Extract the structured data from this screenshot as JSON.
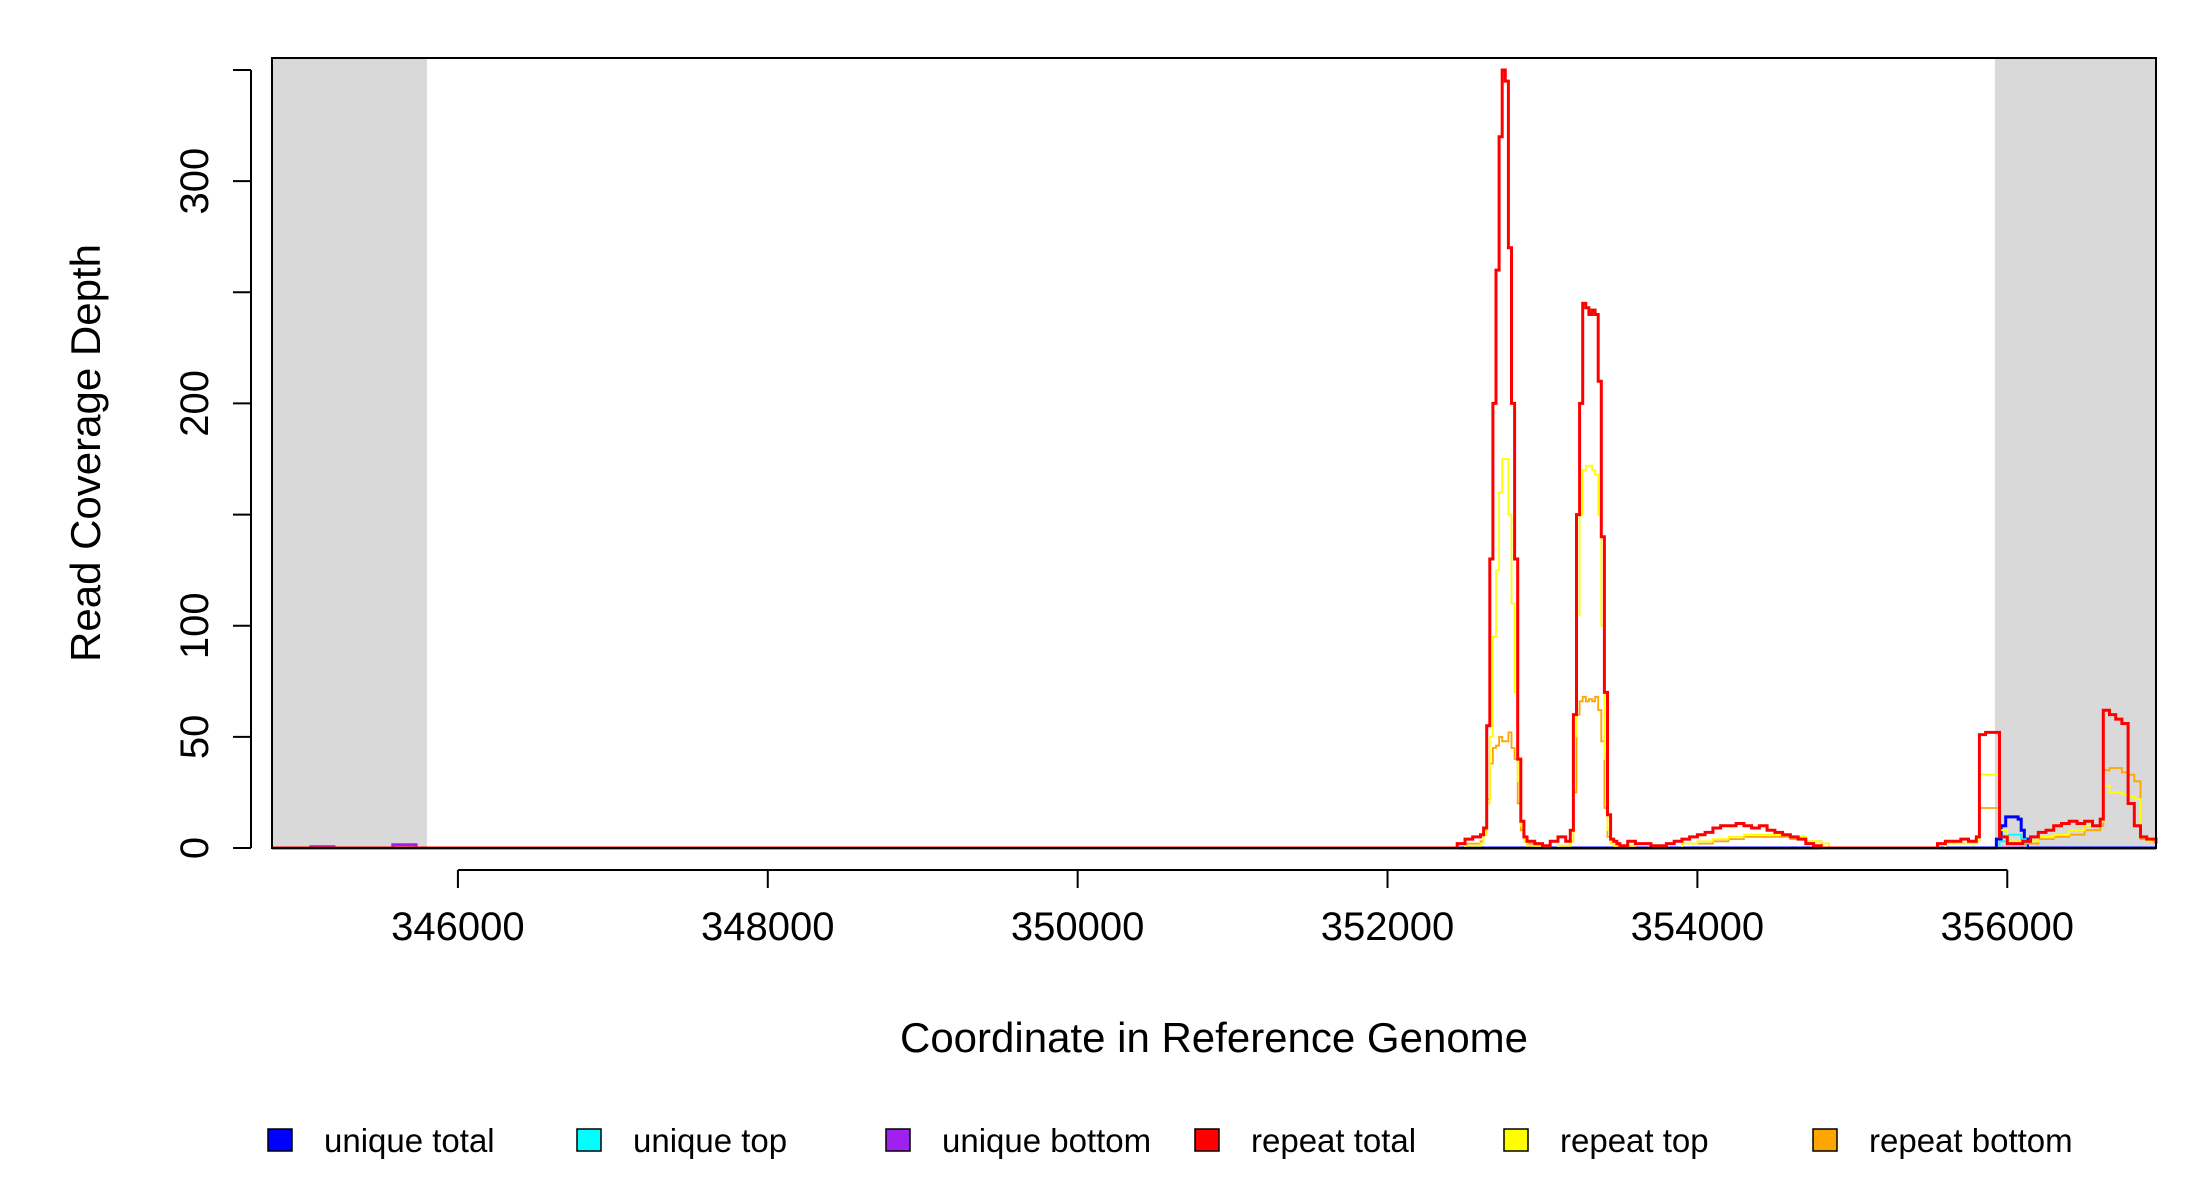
{
  "chart_data": {
    "type": "line",
    "title": "",
    "xlabel": "Coordinate in Reference Genome",
    "ylabel": "Read Coverage Depth",
    "xlim": [
      344800,
      356960
    ],
    "ylim": [
      0,
      350
    ],
    "x_ticks": [
      346000,
      348000,
      350000,
      352000,
      354000,
      356000
    ],
    "x_tick_labels": [
      "346000",
      "348000",
      "350000",
      "352000",
      "354000",
      "356000"
    ],
    "y_ticks": [
      0,
      50,
      100,
      150,
      200,
      250,
      300,
      350
    ],
    "y_tick_labels": [
      {
        "value": 0,
        "label": "0"
      },
      {
        "value": 50,
        "label": "50"
      },
      {
        "value": 100,
        "label": "100"
      },
      {
        "value": 200,
        "label": "200"
      },
      {
        "value": 300,
        "label": "300"
      }
    ],
    "shaded_regions": [
      {
        "x0": 344800,
        "x1": 345800,
        "color": "#d9d9d9"
      },
      {
        "x0": 355920,
        "x1": 356960,
        "color": "#d9d9d9"
      }
    ],
    "grid": false,
    "legend_position": "bottom",
    "legend": [
      {
        "label": "unique total",
        "color": "#0000ff"
      },
      {
        "label": "unique top",
        "color": "#00ffff"
      },
      {
        "label": "unique bottom",
        "color": "#a020f0"
      },
      {
        "label": "repeat total",
        "color": "#ff0000"
      },
      {
        "label": "repeat top",
        "color": "#ffff00"
      },
      {
        "label": "repeat bottom",
        "color": "#ffa500"
      }
    ],
    "series": [
      {
        "name": "unique bottom",
        "color": "#a020f0",
        "x": [
          344800,
          345050,
          345050,
          345200,
          345200,
          345580,
          345580,
          345730,
          345730,
          356960
        ],
        "y": [
          0,
          0,
          0.6,
          0.6,
          0,
          0,
          1.5,
          1.5,
          0,
          0
        ]
      },
      {
        "name": "unique total",
        "color": "#0000ff",
        "x": [
          344800,
          355900,
          355930,
          355960,
          355990,
          356030,
          356070,
          356090,
          356110,
          356130,
          356960
        ],
        "y": [
          0,
          0,
          4,
          10,
          14,
          14,
          13,
          8,
          4,
          0,
          0
        ]
      },
      {
        "name": "unique top",
        "color": "#00ffff",
        "x": [
          344800,
          355920,
          355950,
          356000,
          356050,
          356090,
          356120,
          356960
        ],
        "y": [
          0,
          0,
          3,
          6,
          6,
          4,
          0,
          0
        ]
      },
      {
        "name": "repeat bottom",
        "color": "#ffa500",
        "x": [
          344800,
          352400,
          352500,
          352600,
          352620,
          352640,
          352660,
          352680,
          352700,
          352720,
          352740,
          352760,
          352780,
          352800,
          352820,
          352840,
          352860,
          352880,
          352900,
          352950,
          353000,
          353100,
          353180,
          353200,
          353220,
          353240,
          353260,
          353280,
          353300,
          353320,
          353340,
          353360,
          353380,
          353400,
          353420,
          353440,
          353460,
          353480,
          353500,
          353550,
          353600,
          353700,
          353800,
          353900,
          354000,
          354100,
          354200,
          354300,
          354400,
          354500,
          354600,
          354700,
          354800,
          354850,
          355500,
          355600,
          355700,
          355800,
          355820,
          355860,
          355900,
          355950,
          356000,
          356100,
          356200,
          356300,
          356400,
          356500,
          356600,
          356620,
          356660,
          356700,
          356740,
          356780,
          356820,
          356860,
          356900,
          356960
        ],
        "y": [
          0,
          0,
          2,
          3,
          8,
          22,
          38,
          45,
          46,
          50,
          48,
          48,
          52,
          45,
          40,
          20,
          8,
          3,
          2,
          1,
          0,
          1,
          3,
          25,
          60,
          66,
          68,
          66,
          67,
          66,
          68,
          62,
          48,
          18,
          5,
          2,
          1,
          1,
          0,
          1,
          2,
          1,
          0,
          2,
          2,
          3,
          4,
          5,
          5,
          5,
          4,
          3,
          2,
          0,
          0,
          2,
          2,
          3,
          18,
          18,
          18,
          5,
          2,
          2,
          4,
          5,
          6,
          8,
          10,
          35,
          36,
          36,
          34,
          33,
          30,
          4,
          3,
          0
        ]
      },
      {
        "name": "repeat top",
        "color": "#ffff00",
        "x": [
          344800,
          352400,
          352500,
          352600,
          352620,
          352640,
          352660,
          352680,
          352700,
          352720,
          352740,
          352760,
          352780,
          352800,
          352820,
          352840,
          352860,
          352880,
          352900,
          352950,
          353000,
          353100,
          353180,
          353200,
          353220,
          353240,
          353260,
          353280,
          353300,
          353320,
          353340,
          353360,
          353380,
          353400,
          353420,
          353440,
          353460,
          353480,
          353500,
          353550,
          353600,
          353700,
          353800,
          353900,
          354000,
          354100,
          354200,
          354300,
          354400,
          354500,
          354600,
          354700,
          354800,
          354850,
          355500,
          355600,
          355700,
          355800,
          355820,
          355860,
          355900,
          355950,
          356000,
          356100,
          356200,
          356300,
          356400,
          356500,
          356600,
          356620,
          356660,
          356700,
          356740,
          356780,
          356820,
          356860,
          356900,
          356960
        ],
        "y": [
          0,
          0,
          1,
          2,
          6,
          20,
          50,
          95,
          125,
          160,
          175,
          175,
          150,
          110,
          70,
          30,
          10,
          3,
          1,
          1,
          0,
          1,
          3,
          50,
          105,
          150,
          170,
          172,
          172,
          170,
          168,
          150,
          100,
          40,
          8,
          2,
          1,
          1,
          0,
          1,
          2,
          1,
          0,
          2,
          3,
          4,
          5,
          6,
          6,
          6,
          5,
          3,
          2,
          0,
          0,
          2,
          2,
          3,
          33,
          33,
          33,
          8,
          3,
          3,
          5,
          6,
          8,
          10,
          12,
          28,
          25,
          25,
          24,
          23,
          22,
          5,
          3,
          0
        ]
      },
      {
        "name": "repeat total",
        "color": "#ff0000",
        "x": [
          344800,
          352400,
          352450,
          352500,
          352550,
          352600,
          352620,
          352640,
          352660,
          352680,
          352700,
          352720,
          352740,
          352760,
          352780,
          352800,
          352820,
          352840,
          352860,
          352880,
          352900,
          352950,
          353000,
          353050,
          353100,
          353150,
          353180,
          353200,
          353220,
          353240,
          353260,
          353280,
          353300,
          353320,
          353340,
          353360,
          353380,
          353400,
          353420,
          353440,
          353460,
          353480,
          353500,
          353550,
          353600,
          353700,
          353800,
          353850,
          353900,
          353950,
          354000,
          354050,
          354100,
          354150,
          354200,
          354250,
          354300,
          354350,
          354400,
          354450,
          354500,
          354550,
          354600,
          354650,
          354700,
          354750,
          354800,
          354850,
          355500,
          355550,
          355600,
          355650,
          355700,
          355750,
          355800,
          355820,
          355860,
          355900,
          355950,
          356000,
          356050,
          356100,
          356150,
          356200,
          356250,
          356300,
          356350,
          356400,
          356450,
          356500,
          356550,
          356600,
          356620,
          356660,
          356700,
          356740,
          356780,
          356820,
          356860,
          356900,
          356960
        ],
        "y": [
          0,
          0,
          2,
          4,
          5,
          6,
          9,
          55,
          130,
          200,
          260,
          320,
          350,
          345,
          270,
          200,
          130,
          40,
          12,
          5,
          3,
          2,
          1,
          3,
          5,
          3,
          8,
          60,
          150,
          200,
          245,
          243,
          240,
          242,
          240,
          210,
          140,
          70,
          15,
          4,
          3,
          2,
          1,
          3,
          2,
          1,
          2,
          3,
          4,
          5,
          6,
          7,
          9,
          10,
          10,
          11,
          10,
          9,
          10,
          8,
          7,
          6,
          5,
          4,
          2,
          1,
          0,
          0,
          0,
          2,
          3,
          3,
          4,
          3,
          5,
          51,
          52,
          52,
          5,
          2,
          2,
          3,
          5,
          7,
          8,
          10,
          11,
          12,
          11,
          12,
          10,
          13,
          62,
          60,
          58,
          56,
          20,
          10,
          5,
          4,
          2
        ]
      }
    ]
  }
}
